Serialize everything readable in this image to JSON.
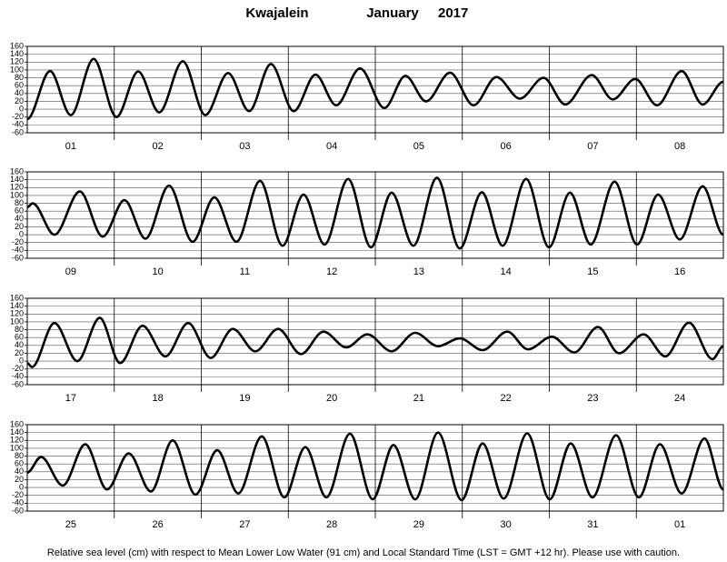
{
  "header": {
    "station": "Kwajalein",
    "month": "January",
    "year": "2017"
  },
  "footer": "Relative sea level (cm) with respect to Mean Lower Low Water (91 cm) and Local Standard Time (LST = GMT +12 hr). Please use with caution.",
  "chart_data": [
    {
      "type": "line",
      "color": "#000000",
      "xlim": [
        0,
        192
      ],
      "ylim": [
        -60,
        160
      ],
      "yticks": [
        -60,
        -40,
        -20,
        0,
        20,
        40,
        60,
        80,
        100,
        120,
        140,
        160
      ],
      "xticks": [
        24,
        48,
        72,
        96,
        120,
        144,
        168
      ],
      "categories": [
        "01",
        "02",
        "03",
        "04",
        "05",
        "06",
        "07",
        "08"
      ],
      "x": [
        0,
        6.3,
        12,
        18.3,
        24.6,
        30.6,
        36.4,
        42.9,
        49.1,
        55.4,
        61.2,
        67.2,
        73.5,
        79.5,
        85.2,
        91.8,
        98.5,
        104.3,
        110,
        116.6,
        123.1,
        129.4,
        135.9,
        142.4,
        148.4,
        155.7,
        161.5,
        167.7,
        173.7,
        180.5,
        186.3,
        192
      ],
      "values": [
        -25,
        97,
        -15,
        128,
        -20,
        96,
        -8,
        122,
        -15,
        92,
        -5,
        115,
        -5,
        88,
        10,
        104,
        3,
        85,
        20,
        93,
        10,
        82,
        27,
        80,
        12,
        87,
        25,
        77,
        10,
        97,
        12,
        70
      ]
    },
    {
      "type": "line",
      "color": "#000000",
      "xlim": [
        0,
        192
      ],
      "ylim": [
        -60,
        160
      ],
      "yticks": [
        -60,
        -40,
        -20,
        0,
        20,
        40,
        60,
        80,
        100,
        120,
        140,
        160
      ],
      "xticks": [
        24,
        48,
        72,
        96,
        120,
        144,
        168
      ],
      "categories": [
        "09",
        "10",
        "11",
        "12",
        "13",
        "14",
        "15",
        "16"
      ],
      "x": [
        0,
        1.5,
        7.5,
        14.5,
        20.8,
        26.8,
        32.6,
        39.1,
        45.6,
        51.6,
        57.7,
        64.2,
        70.4,
        76.2,
        82,
        88.5,
        94.8,
        100.5,
        106.5,
        113,
        119.3,
        125.4,
        131.1,
        137.6,
        143.9,
        149.7,
        155.4,
        162,
        168.2,
        174,
        180,
        186.3,
        192
      ],
      "values": [
        70,
        80,
        0,
        110,
        -5,
        88,
        -10,
        125,
        -18,
        95,
        -18,
        137,
        -28,
        102,
        -25,
        142,
        -32,
        107,
        -28,
        145,
        -35,
        108,
        -28,
        142,
        -32,
        107,
        -25,
        135,
        -25,
        102,
        -12,
        123,
        0
      ]
    },
    {
      "type": "line",
      "color": "#000000",
      "xlim": [
        0,
        192
      ],
      "ylim": [
        -60,
        160
      ],
      "yticks": [
        -60,
        -40,
        -20,
        0,
        20,
        40,
        60,
        80,
        100,
        120,
        140,
        160
      ],
      "xticks": [
        24,
        48,
        72,
        96,
        120,
        144,
        168
      ],
      "categories": [
        "17",
        "18",
        "19",
        "20",
        "21",
        "22",
        "23",
        "24"
      ],
      "x": [
        0,
        1.3,
        7.5,
        13.8,
        20,
        25.6,
        31.8,
        38.1,
        44.4,
        50.6,
        56.7,
        62.9,
        69.2,
        75.5,
        81.7,
        88,
        93.8,
        100.5,
        107,
        113.3,
        119.3,
        125.6,
        132.4,
        138.1,
        144.7,
        150.9,
        157.4,
        163.2,
        170,
        176,
        182.5,
        189,
        192
      ],
      "values": [
        -5,
        -15,
        97,
        0,
        110,
        -5,
        90,
        12,
        97,
        8,
        82,
        25,
        82,
        18,
        75,
        35,
        68,
        25,
        72,
        38,
        58,
        28,
        75,
        30,
        62,
        22,
        87,
        20,
        68,
        12,
        98,
        5,
        38
      ]
    },
    {
      "type": "line",
      "color": "#000000",
      "xlim": [
        0,
        192
      ],
      "ylim": [
        -60,
        160
      ],
      "yticks": [
        -60,
        -40,
        -20,
        0,
        20,
        40,
        60,
        80,
        100,
        120,
        140,
        160
      ],
      "xticks": [
        24,
        48,
        72,
        96,
        120,
        144,
        168
      ],
      "categories": [
        "25",
        "26",
        "27",
        "28",
        "29",
        "30",
        "31",
        "01"
      ],
      "x": [
        0,
        3.8,
        9.8,
        16,
        22,
        28,
        34.1,
        40.1,
        46.4,
        52.4,
        58.2,
        64.7,
        70.9,
        76.7,
        82.5,
        89,
        95.3,
        101,
        107,
        113.3,
        119.8,
        125.6,
        131.4,
        137.9,
        144.1,
        149.9,
        155.9,
        162.4,
        168.7,
        174.5,
        180.5,
        186.8,
        192
      ],
      "values": [
        38,
        78,
        5,
        110,
        -5,
        87,
        -10,
        120,
        -18,
        95,
        -15,
        130,
        -25,
        103,
        -25,
        137,
        -30,
        108,
        -30,
        140,
        -32,
        112,
        -28,
        138,
        -30,
        112,
        -25,
        133,
        -25,
        110,
        -15,
        125,
        -5
      ]
    }
  ]
}
